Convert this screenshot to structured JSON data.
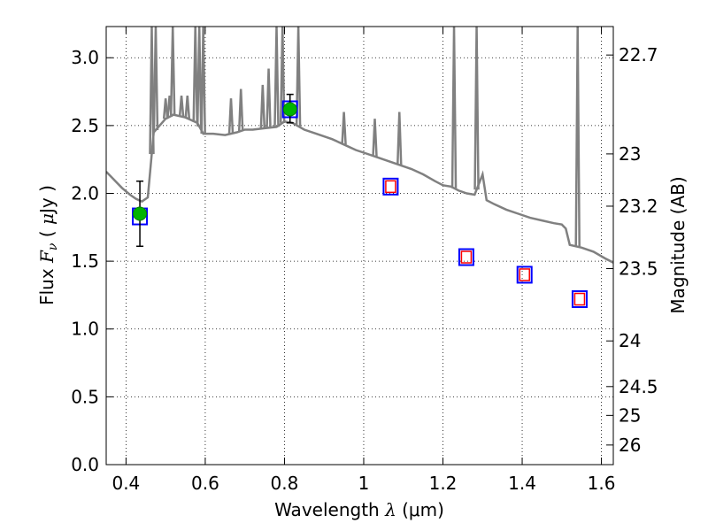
{
  "chart_data": {
    "type": "scatter",
    "xlabel_pre": "Wavelength",
    "xlabel_sym": "λ",
    "xlabel_unit": "(μm)",
    "ylabel_pre": "Flux",
    "ylabel_sym": "F",
    "ylabel_sub": "ν",
    "ylabel_unit_open": "(",
    "ylabel_unit_mu": "μ",
    "ylabel_unit_close": "Jy )",
    "y2label": "Magnitude (AB)",
    "xlim": [
      0.35,
      1.63
    ],
    "ylim": [
      0.0,
      3.23
    ],
    "grid": true,
    "x_ticks": [
      {
        "v": 0.4,
        "label": "0.4"
      },
      {
        "v": 0.6,
        "label": "0.6"
      },
      {
        "v": 0.8,
        "label": "0.8"
      },
      {
        "v": 1.0,
        "label": "1"
      },
      {
        "v": 1.2,
        "label": "1.2"
      },
      {
        "v": 1.4,
        "label": "1.4"
      },
      {
        "v": 1.6,
        "label": "1.6"
      }
    ],
    "y_ticks": [
      {
        "v": 0.0,
        "label": "0.0"
      },
      {
        "v": 0.5,
        "label": "0.5"
      },
      {
        "v": 1.0,
        "label": "1.0"
      },
      {
        "v": 1.5,
        "label": "1.5"
      },
      {
        "v": 2.0,
        "label": "2.0"
      },
      {
        "v": 2.5,
        "label": "2.5"
      },
      {
        "v": 3.0,
        "label": "3.0"
      }
    ],
    "mag_ticks": [
      {
        "v": 22.7,
        "label": "22.7"
      },
      {
        "v": 23.0,
        "label": "23"
      },
      {
        "v": 23.2,
        "label": "23.2"
      },
      {
        "v": 23.5,
        "label": "23.5"
      },
      {
        "v": 24.0,
        "label": "24"
      },
      {
        "v": 24.5,
        "label": "24.5"
      },
      {
        "v": 25.0,
        "label": "25"
      },
      {
        "v": 26.0,
        "label": "26"
      }
    ],
    "observed": [
      {
        "x": 0.435,
        "y": 1.85,
        "yerr_low": 1.61,
        "yerr_high": 2.09
      },
      {
        "x": 0.814,
        "y": 2.62,
        "yerr_low": 2.52,
        "yerr_high": 2.73
      }
    ],
    "model_squares": [
      {
        "x": 0.435,
        "y": 1.83
      },
      {
        "x": 0.814,
        "y": 2.62
      },
      {
        "x": 1.068,
        "y": 2.05
      },
      {
        "x": 1.259,
        "y": 1.53
      },
      {
        "x": 1.406,
        "y": 1.4
      },
      {
        "x": 1.545,
        "y": 1.22
      }
    ],
    "predicted_squares": [
      {
        "x": 1.068,
        "y": 2.05
      },
      {
        "x": 1.259,
        "y": 1.53
      },
      {
        "x": 1.406,
        "y": 1.4
      },
      {
        "x": 1.545,
        "y": 1.22
      }
    ],
    "sed_continuum": [
      [
        0.35,
        2.16
      ],
      [
        0.37,
        2.1
      ],
      [
        0.39,
        2.04
      ],
      [
        0.41,
        1.99
      ],
      [
        0.425,
        1.96
      ],
      [
        0.44,
        1.94
      ],
      [
        0.455,
        1.97
      ],
      [
        0.47,
        2.45
      ],
      [
        0.5,
        2.55
      ],
      [
        0.52,
        2.58
      ],
      [
        0.55,
        2.56
      ],
      [
        0.58,
        2.52
      ],
      [
        0.595,
        2.44
      ],
      [
        0.62,
        2.44
      ],
      [
        0.65,
        2.43
      ],
      [
        0.68,
        2.45
      ],
      [
        0.7,
        2.47
      ],
      [
        0.72,
        2.47
      ],
      [
        0.75,
        2.48
      ],
      [
        0.78,
        2.49
      ],
      [
        0.8,
        2.53
      ],
      [
        0.82,
        2.52
      ],
      [
        0.85,
        2.47
      ],
      [
        0.88,
        2.44
      ],
      [
        0.92,
        2.4
      ],
      [
        0.95,
        2.36
      ],
      [
        0.98,
        2.32
      ],
      [
        1.0,
        2.3
      ],
      [
        1.03,
        2.27
      ],
      [
        1.06,
        2.24
      ],
      [
        1.09,
        2.21
      ],
      [
        1.12,
        2.18
      ],
      [
        1.15,
        2.14
      ],
      [
        1.18,
        2.09
      ],
      [
        1.2,
        2.06
      ],
      [
        1.22,
        2.05
      ],
      [
        1.24,
        2.02
      ],
      [
        1.26,
        2.0
      ],
      [
        1.28,
        1.99
      ],
      [
        1.3,
        2.14
      ],
      [
        1.31,
        1.95
      ],
      [
        1.33,
        1.92
      ],
      [
        1.36,
        1.88
      ],
      [
        1.39,
        1.85
      ],
      [
        1.42,
        1.82
      ],
      [
        1.45,
        1.8
      ],
      [
        1.48,
        1.78
      ],
      [
        1.5,
        1.77
      ],
      [
        1.51,
        1.74
      ],
      [
        1.52,
        1.62
      ],
      [
        1.55,
        1.6
      ],
      [
        1.58,
        1.57
      ],
      [
        1.61,
        1.52
      ],
      [
        1.63,
        1.49
      ]
    ],
    "sed_lines": [
      [
        0.465,
        3.23
      ],
      [
        0.475,
        3.23
      ],
      [
        0.5,
        2.7
      ],
      [
        0.51,
        2.72
      ],
      [
        0.518,
        3.23
      ],
      [
        0.54,
        2.72
      ],
      [
        0.555,
        2.72
      ],
      [
        0.575,
        3.23
      ],
      [
        0.585,
        3.23
      ],
      [
        0.595,
        3.23
      ],
      [
        0.665,
        2.7
      ],
      [
        0.69,
        2.77
      ],
      [
        0.745,
        2.8
      ],
      [
        0.76,
        2.92
      ],
      [
        0.78,
        3.23
      ],
      [
        0.795,
        3.23
      ],
      [
        0.835,
        3.23
      ],
      [
        0.95,
        2.6
      ],
      [
        1.028,
        2.55
      ],
      [
        1.09,
        2.6
      ],
      [
        1.228,
        3.23
      ],
      [
        1.285,
        3.23
      ],
      [
        1.54,
        3.23
      ]
    ]
  }
}
